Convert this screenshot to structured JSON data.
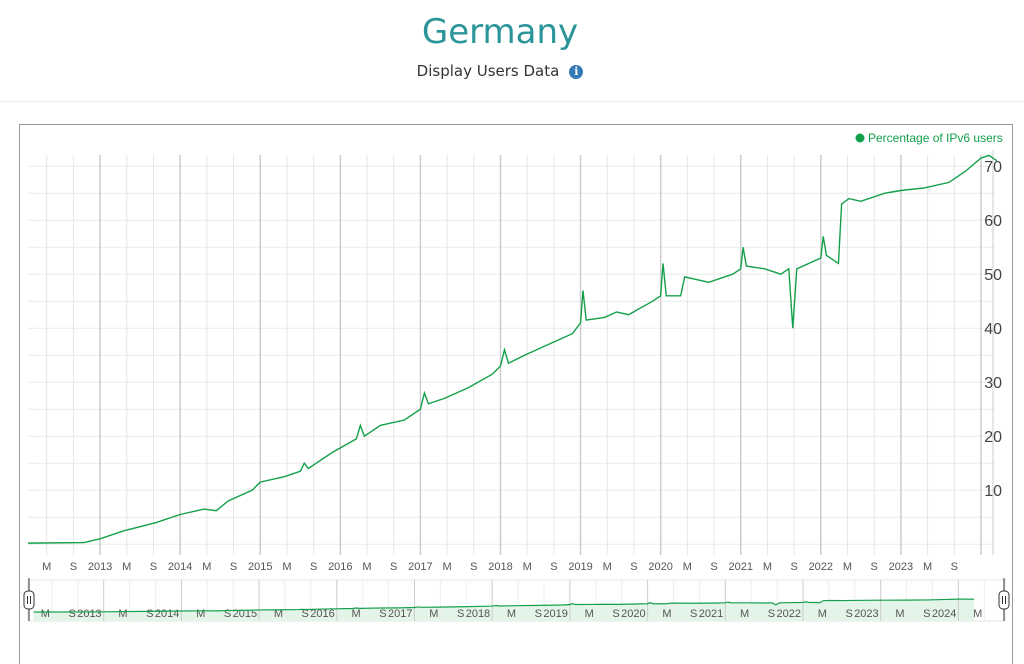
{
  "header": {
    "title": "Germany",
    "subtitle": "Display Users Data",
    "info_icon": "info-circle-icon"
  },
  "chart_data": {
    "type": "line",
    "title": "Germany",
    "legend": {
      "entries": [
        "Percentage of IPv6 users"
      ],
      "placement": "top-right"
    },
    "series": [
      {
        "name": "Percentage of IPv6 users",
        "color": "#14a04b",
        "points": [
          [
            2012.1,
            0.2
          ],
          [
            2012.8,
            0.3
          ],
          [
            2013.0,
            1
          ],
          [
            2013.3,
            2.5
          ],
          [
            2013.7,
            4
          ],
          [
            2014.0,
            5.5
          ],
          [
            2014.3,
            6.5
          ],
          [
            2014.45,
            6.2
          ],
          [
            2014.6,
            8
          ],
          [
            2014.9,
            10
          ],
          [
            2015.0,
            11.5
          ],
          [
            2015.3,
            12.5
          ],
          [
            2015.5,
            13.5
          ],
          [
            2015.55,
            15
          ],
          [
            2015.6,
            14
          ],
          [
            2015.9,
            17
          ],
          [
            2016.2,
            19.5
          ],
          [
            2016.25,
            22
          ],
          [
            2016.3,
            20
          ],
          [
            2016.5,
            22
          ],
          [
            2016.8,
            23
          ],
          [
            2017.0,
            25
          ],
          [
            2017.05,
            28
          ],
          [
            2017.1,
            26
          ],
          [
            2017.3,
            27
          ],
          [
            2017.6,
            29
          ],
          [
            2017.9,
            31.5
          ],
          [
            2018.0,
            33
          ],
          [
            2018.05,
            36
          ],
          [
            2018.1,
            33.5
          ],
          [
            2018.3,
            35
          ],
          [
            2018.6,
            37
          ],
          [
            2018.9,
            39
          ],
          [
            2019.0,
            41
          ],
          [
            2019.03,
            47
          ],
          [
            2019.07,
            41.5
          ],
          [
            2019.3,
            42
          ],
          [
            2019.45,
            43
          ],
          [
            2019.6,
            42.5
          ],
          [
            2019.9,
            45
          ],
          [
            2020.0,
            46
          ],
          [
            2020.03,
            52
          ],
          [
            2020.07,
            46
          ],
          [
            2020.25,
            46
          ],
          [
            2020.3,
            49.5
          ],
          [
            2020.6,
            48.5
          ],
          [
            2020.9,
            50
          ],
          [
            2021.0,
            51
          ],
          [
            2021.03,
            55
          ],
          [
            2021.07,
            51.5
          ],
          [
            2021.3,
            51
          ],
          [
            2021.5,
            50
          ],
          [
            2021.6,
            51
          ],
          [
            2021.65,
            40
          ],
          [
            2021.7,
            51
          ],
          [
            2022.0,
            53
          ],
          [
            2022.03,
            57
          ],
          [
            2022.07,
            53.5
          ],
          [
            2022.22,
            52
          ],
          [
            2022.26,
            63
          ],
          [
            2022.35,
            64
          ],
          [
            2022.5,
            63.5
          ],
          [
            2022.8,
            65
          ],
          [
            2023.0,
            65.5
          ],
          [
            2023.3,
            66
          ],
          [
            2023.6,
            67
          ],
          [
            2023.8,
            69
          ],
          [
            2024.0,
            71.5
          ],
          [
            2024.1,
            72
          ],
          [
            2024.2,
            71
          ]
        ]
      }
    ],
    "xlim": [
      2012.1,
      2024.3
    ],
    "ylim": [
      -2,
      73
    ],
    "yticks": [
      10,
      20,
      30,
      40,
      50,
      60,
      70
    ],
    "xtick_years": [
      2013,
      2014,
      2015,
      2016,
      2017,
      2018,
      2019,
      2020,
      2021,
      2022,
      2023
    ],
    "minor_labels": [
      "M",
      "S"
    ],
    "navigator": {
      "xlim": [
        2012.0,
        2024.6
      ],
      "years": [
        2013,
        2014,
        2015,
        2016,
        2017,
        2018,
        2019,
        2020,
        2021,
        2022,
        2023,
        2024
      ]
    },
    "grid": true
  }
}
